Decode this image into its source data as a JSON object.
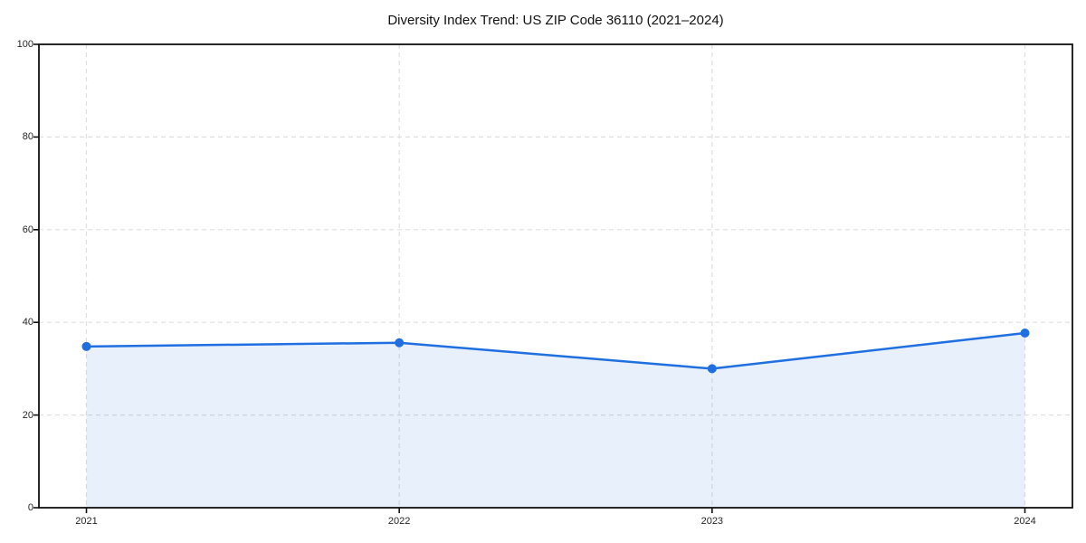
{
  "chart_data": {
    "type": "line",
    "area_fill": true,
    "title": "Diversity Index Trend: US ZIP Code 36110 (2021–2024)",
    "categories": [
      "2021",
      "2022",
      "2023",
      "2024"
    ],
    "series": [
      {
        "name": "Diversity Index",
        "values": [
          34.8,
          35.6,
          30.0,
          37.7
        ]
      }
    ],
    "xlabel": "",
    "ylabel": "",
    "ylim": [
      0,
      100
    ],
    "yticks": [
      0,
      20,
      40,
      60,
      80,
      100
    ],
    "grid": "on",
    "grid_style": "dashed",
    "legend": "none",
    "colors": {
      "line": "#1f6fe0",
      "marker": "#1f6fe0",
      "area": "rgba(31, 111, 224, 0.10)",
      "grid": "#dfdfdf",
      "spine": "#111111",
      "tick_label": "#262626",
      "title": "#111111",
      "background": "#ffffff"
    }
  },
  "layout_meta": {
    "marker_radius": 5,
    "line_width": 2.5
  }
}
